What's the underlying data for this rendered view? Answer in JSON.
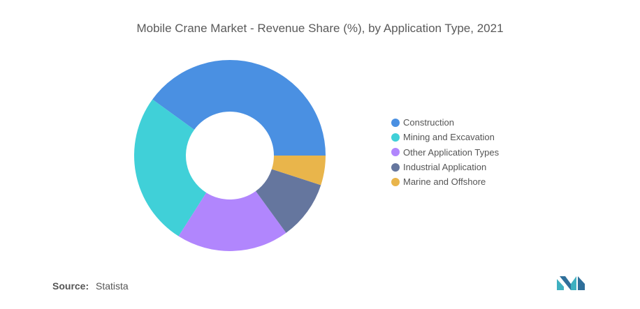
{
  "chart_data": {
    "type": "pie",
    "title": "Mobile Crane Market - Revenue Share (%), by Application Type, 2021",
    "categories": [
      "Construction",
      "Mining and Excavation",
      "Other Application Types",
      "Industrial Application",
      "Marine and Offshore"
    ],
    "values": [
      40,
      26,
      19,
      10,
      5
    ],
    "colors": [
      "#4a90e2",
      "#40d0d8",
      "#b186fd",
      "#65769e",
      "#e9b54b"
    ],
    "legend_position": "right"
  },
  "source": {
    "label": "Source:",
    "value": "Statista"
  },
  "logo": {
    "icon": "mordor-intelligence-logo-icon"
  }
}
